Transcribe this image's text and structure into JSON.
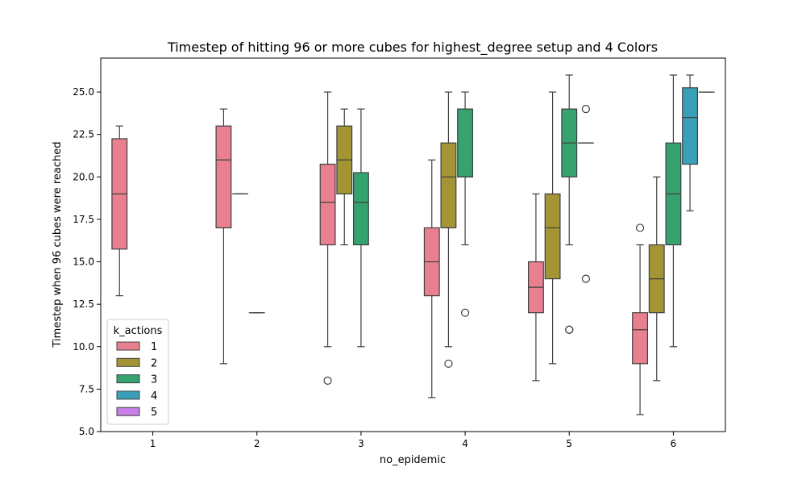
{
  "chart_data": {
    "type": "box",
    "title": "Timestep of hitting 96 or more cubes for highest_degree setup and 4 Colors",
    "xlabel": "no_epidemic",
    "ylabel": "Timestep when 96 cubes were reached",
    "categories": [
      "1",
      "2",
      "3",
      "4",
      "5",
      "6"
    ],
    "ylim": [
      5.0,
      27.0
    ],
    "yticks": [
      "5.0",
      "7.5",
      "10.0",
      "12.5",
      "15.0",
      "17.5",
      "20.0",
      "22.5",
      "25.0"
    ],
    "grid": false,
    "legend": {
      "title": "k_actions",
      "position": "lower-left",
      "entries": [
        "1",
        "2",
        "3",
        "4",
        "5"
      ]
    },
    "series": [
      {
        "name": "1",
        "color": "#e8808f",
        "boxes": [
          {
            "category": "1",
            "whislo": 13,
            "q1": 15.75,
            "med": 19,
            "q3": 22.25,
            "whishi": 23,
            "fliers": []
          },
          {
            "category": "2",
            "whislo": 9,
            "q1": 17,
            "med": 21,
            "q3": 23,
            "whishi": 24,
            "fliers": []
          },
          {
            "category": "3",
            "whislo": 10,
            "q1": 16,
            "med": 18.5,
            "q3": 20.75,
            "whishi": 25,
            "fliers": [
              8
            ]
          },
          {
            "category": "4",
            "whislo": 7,
            "q1": 13,
            "med": 15,
            "q3": 17,
            "whishi": 21,
            "fliers": []
          },
          {
            "category": "5",
            "whislo": 8,
            "q1": 12,
            "med": 13.5,
            "q3": 15,
            "whishi": 19,
            "fliers": []
          },
          {
            "category": "6",
            "whislo": 6,
            "q1": 9,
            "med": 11,
            "q3": 12,
            "whishi": 16,
            "fliers": [
              17
            ]
          }
        ]
      },
      {
        "name": "2",
        "color": "#a39436",
        "boxes": [
          {
            "category": "2",
            "whislo": 19,
            "q1": 19,
            "med": 19,
            "q3": 19,
            "whishi": 19,
            "fliers": []
          },
          {
            "category": "3",
            "whislo": 16,
            "q1": 19,
            "med": 21,
            "q3": 23,
            "whishi": 24,
            "fliers": []
          },
          {
            "category": "4",
            "whislo": 10,
            "q1": 17,
            "med": 20,
            "q3": 22,
            "whishi": 25,
            "fliers": [
              9
            ]
          },
          {
            "category": "5",
            "whislo": 9,
            "q1": 14,
            "med": 17,
            "q3": 19,
            "whishi": 25,
            "fliers": []
          },
          {
            "category": "6",
            "whislo": 8,
            "q1": 12,
            "med": 14,
            "q3": 16,
            "whishi": 20,
            "fliers": []
          }
        ]
      },
      {
        "name": "3",
        "color": "#36a36e",
        "boxes": [
          {
            "category": "2",
            "whislo": 12,
            "q1": 12,
            "med": 12,
            "q3": 12,
            "whishi": 12,
            "fliers": []
          },
          {
            "category": "3",
            "whislo": 10,
            "q1": 16,
            "med": 18.5,
            "q3": 20.25,
            "whishi": 24,
            "fliers": []
          },
          {
            "category": "4",
            "whislo": 16,
            "q1": 20,
            "med": 20,
            "q3": 24,
            "whishi": 25,
            "fliers": [
              12
            ]
          },
          {
            "category": "5",
            "whislo": 16,
            "q1": 20,
            "med": 22,
            "q3": 24,
            "whishi": 26,
            "fliers": [
              11,
              11
            ]
          },
          {
            "category": "6",
            "whislo": 10,
            "q1": 16,
            "med": 19,
            "q3": 22,
            "whishi": 26,
            "fliers": []
          }
        ]
      },
      {
        "name": "4",
        "color": "#3aa0b8",
        "boxes": [
          {
            "category": "5",
            "whislo": 22,
            "q1": 22,
            "med": 22,
            "q3": 22,
            "whishi": 22,
            "fliers": [
              24,
              14
            ]
          },
          {
            "category": "6",
            "whislo": 18,
            "q1": 20.75,
            "med": 23.5,
            "q3": 25.25,
            "whishi": 26,
            "fliers": []
          }
        ]
      },
      {
        "name": "5",
        "color": "#c77ee8",
        "boxes": [
          {
            "category": "6",
            "whislo": 25,
            "q1": 25,
            "med": 25,
            "q3": 25,
            "whishi": 25,
            "fliers": []
          }
        ]
      }
    ]
  }
}
